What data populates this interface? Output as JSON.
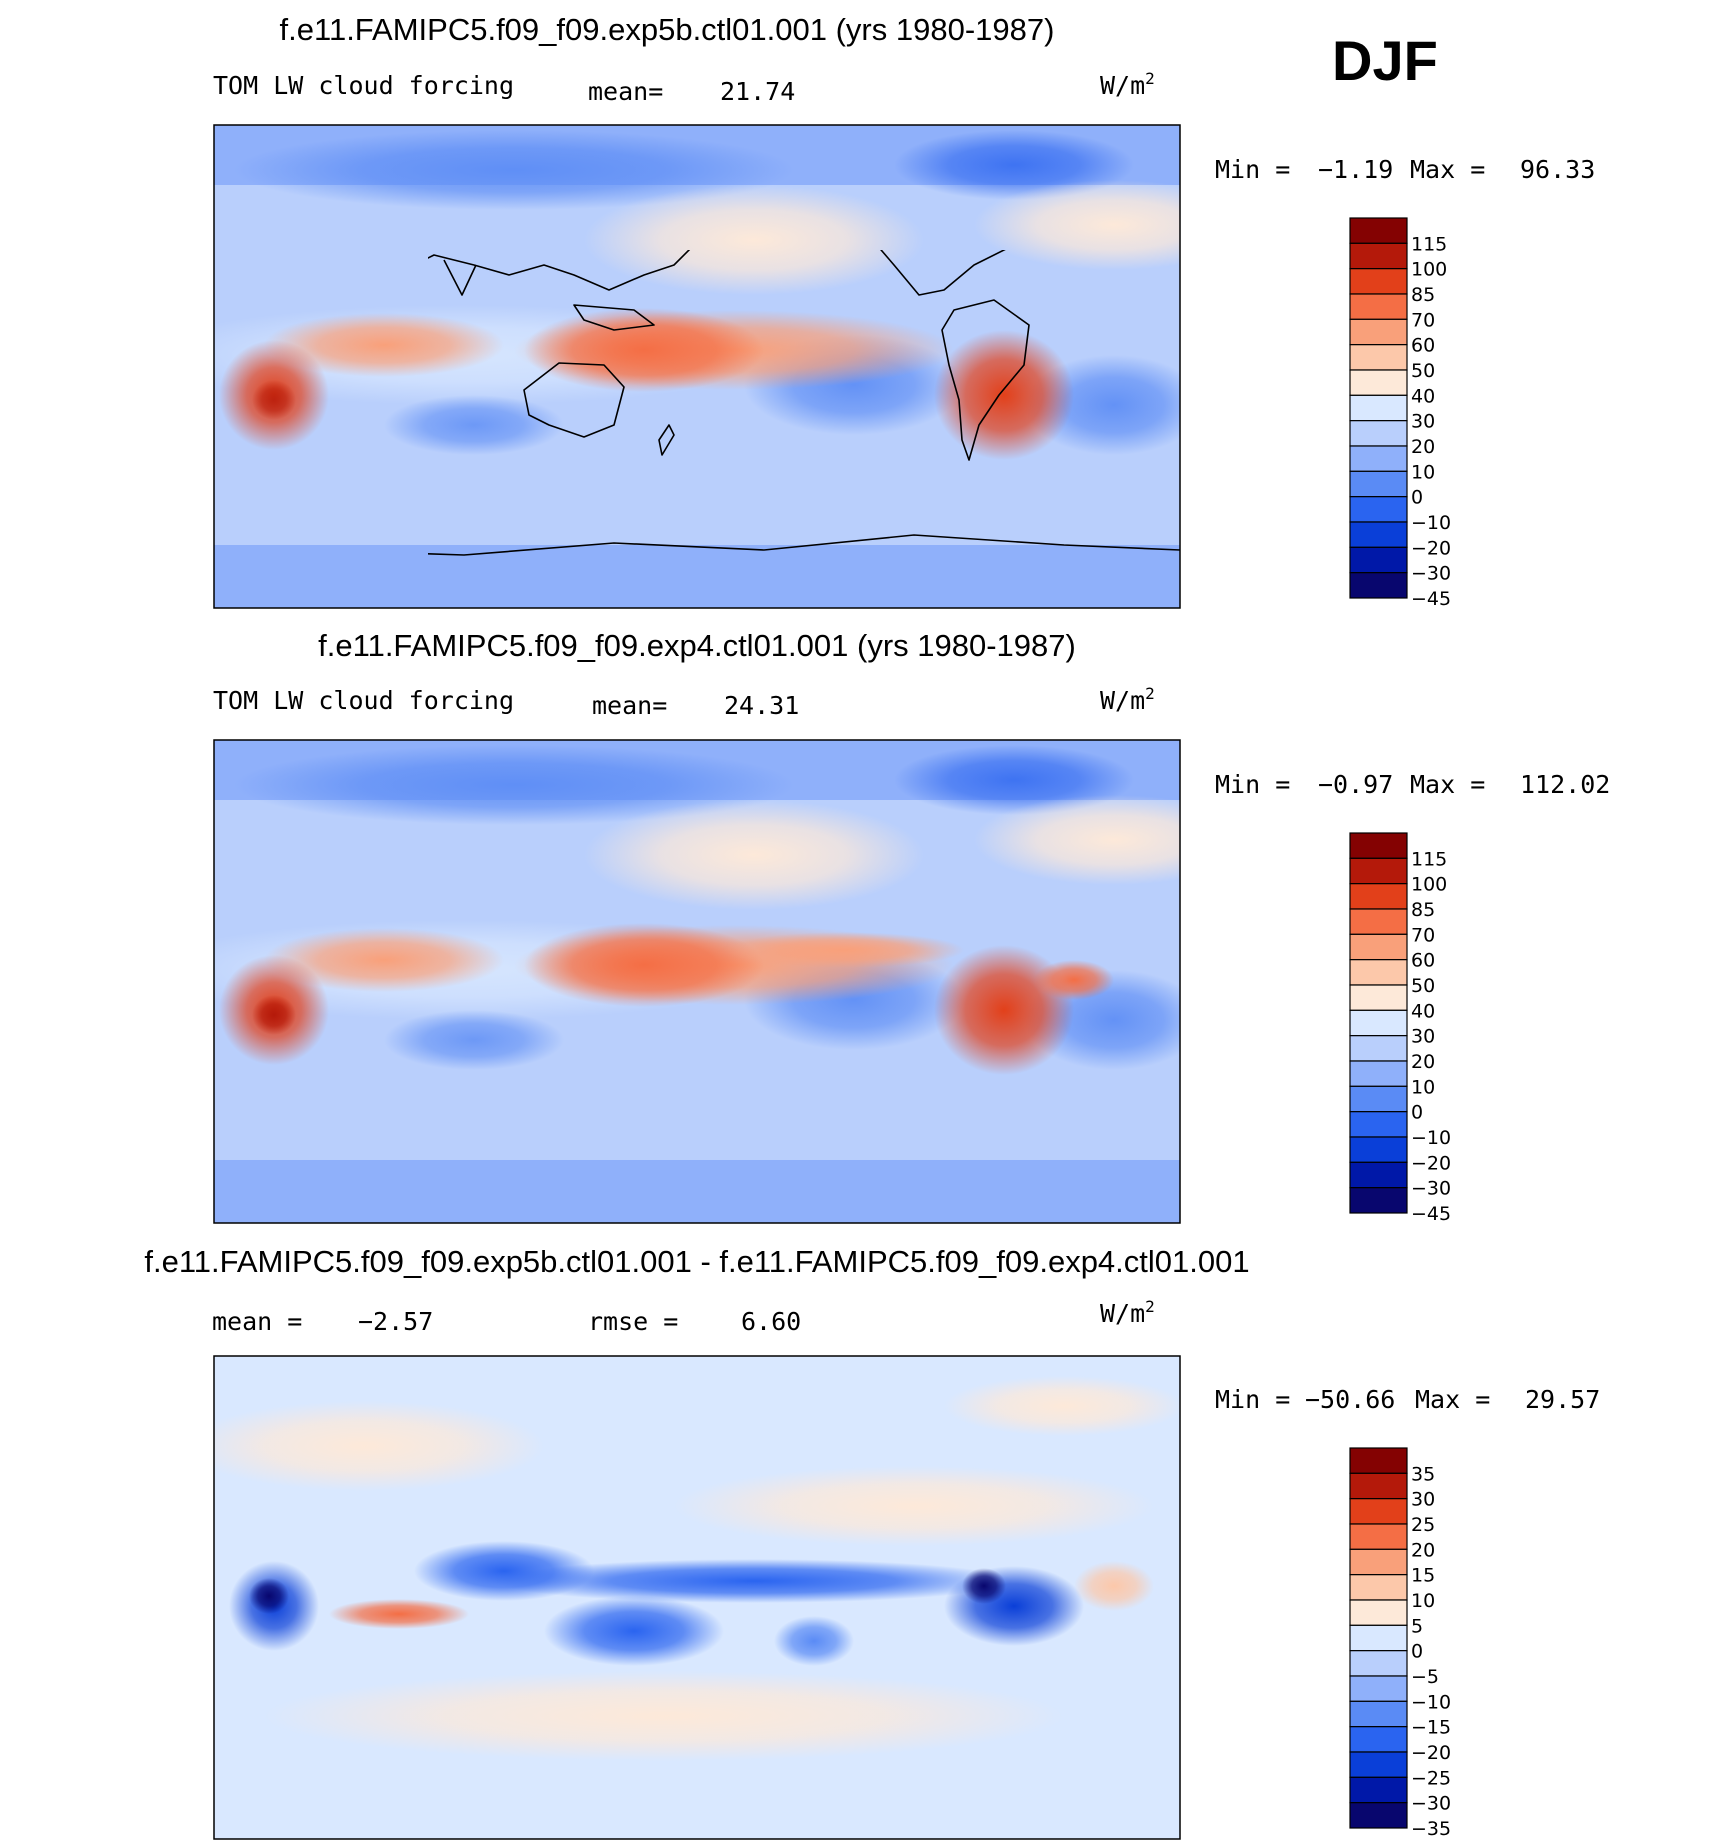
{
  "season": "DJF",
  "colors": {
    "absolute_scale": [
      "#08066e",
      "#0018a8",
      "#0a3fd8",
      "#2a64f0",
      "#5a8bf5",
      "#8fb0fa",
      "#b9cffc",
      "#d9e8ff",
      "#fde9d9",
      "#fcc8aa",
      "#f9a07a",
      "#f46e45",
      "#e2401a",
      "#b4190a",
      "#840202"
    ],
    "difference_scale": [
      "#08066e",
      "#0018a8",
      "#0a3fd8",
      "#2a64f0",
      "#5a8bf5",
      "#8fb0fa",
      "#b9cffc",
      "#d9e8ff",
      "#fde9d9",
      "#fcc8aa",
      "#f9a07a",
      "#f46e45",
      "#e2401a",
      "#b4190a",
      "#840202"
    ],
    "frame": "#000000",
    "coast": "#000000"
  },
  "panels": [
    {
      "id": "top",
      "title": "f.e11.FAMIPC5.f09_f09.exp5b.ctl01.001 (yrs 1980-1987)",
      "left_label": "TOM LW cloud forcing",
      "mean_label": "mean=",
      "mean_value": "21.74",
      "units_base": "W/m",
      "units_exp": "2",
      "min_label": "Min =",
      "min_value": "−1.19",
      "max_label": "Max =",
      "max_value": "96.33",
      "colorbar_ticks": [
        "115",
        "100",
        "85",
        "70",
        "60",
        "50",
        "40",
        "30",
        "20",
        "10",
        "0",
        "−10",
        "−20",
        "−30",
        "−45"
      ],
      "field": "abs",
      "level": 21.74
    },
    {
      "id": "middle",
      "title": "f.e11.FAMIPC5.f09_f09.exp4.ctl01.001 (yrs 1980-1987)",
      "left_label": "TOM LW cloud forcing",
      "mean_label": "mean=",
      "mean_value": "24.31",
      "units_base": "W/m",
      "units_exp": "2",
      "min_label": "Min =",
      "min_value": "−0.97",
      "max_label": "Max =",
      "max_value": "112.02",
      "colorbar_ticks": [
        "115",
        "100",
        "85",
        "70",
        "60",
        "50",
        "40",
        "30",
        "20",
        "10",
        "0",
        "−10",
        "−20",
        "−30",
        "−45"
      ],
      "field": "abs",
      "level": 24.31
    },
    {
      "id": "bottom",
      "title": "f.e11.FAMIPC5.f09_f09.exp5b.ctl01.001 - f.e11.FAMIPC5.f09_f09.exp4.ctl01.001",
      "left_label": "mean =",
      "left_value": "−2.57",
      "mean_label": "rmse =",
      "mean_value": "6.60",
      "units_base": "W/m",
      "units_exp": "2",
      "min_label": "Min =",
      "min_value": "−50.66",
      "max_label": "Max =",
      "max_value": "29.57",
      "colorbar_ticks": [
        "35",
        "30",
        "25",
        "20",
        "15",
        "10",
        "5",
        "0",
        "−5",
        "−10",
        "−15",
        "−20",
        "−25",
        "−30",
        "−35"
      ],
      "field": "diff",
      "level": -2.57
    }
  ]
}
